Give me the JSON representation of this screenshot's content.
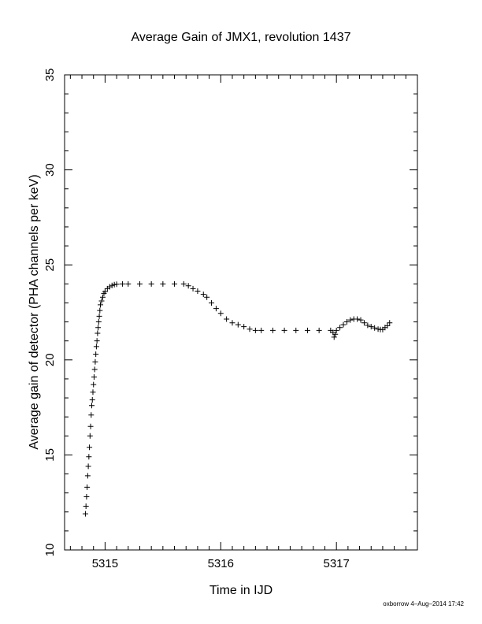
{
  "chart_data": {
    "type": "scatter",
    "title": "Average Gain of JMX1, revolution 1437",
    "xlabel": "Time in IJD",
    "ylabel": "Average gain of detector (PHA channels per keV)",
    "xlim": [
      5314.65,
      5317.7
    ],
    "ylim": [
      10,
      35
    ],
    "x_ticks": [
      5315,
      5316,
      5317
    ],
    "x_tick_labels": [
      "5315",
      "5316",
      "5317"
    ],
    "y_ticks": [
      10,
      15,
      20,
      25,
      30,
      35
    ],
    "y_tick_labels": [
      "10",
      "15",
      "20",
      "25",
      "30",
      "35"
    ],
    "grid": false,
    "marker": "plus",
    "color": "#000000",
    "series": [
      {
        "points": [
          [
            5314.83,
            11.9
          ],
          [
            5314.835,
            12.3
          ],
          [
            5314.84,
            12.8
          ],
          [
            5314.845,
            13.3
          ],
          [
            5314.85,
            13.9
          ],
          [
            5314.855,
            14.4
          ],
          [
            5314.86,
            14.9
          ],
          [
            5314.865,
            15.4
          ],
          [
            5314.87,
            16.0
          ],
          [
            5314.875,
            16.5
          ],
          [
            5314.88,
            17.1
          ],
          [
            5314.885,
            17.6
          ],
          [
            5314.89,
            17.9
          ],
          [
            5314.895,
            18.3
          ],
          [
            5314.9,
            18.7
          ],
          [
            5314.905,
            19.1
          ],
          [
            5314.91,
            19.5
          ],
          [
            5314.915,
            19.9
          ],
          [
            5314.92,
            20.3
          ],
          [
            5314.925,
            20.7
          ],
          [
            5314.93,
            21.0
          ],
          [
            5314.935,
            21.4
          ],
          [
            5314.94,
            21.7
          ],
          [
            5314.945,
            22.0
          ],
          [
            5314.95,
            22.3
          ],
          [
            5314.955,
            22.6
          ],
          [
            5314.96,
            22.9
          ],
          [
            5314.97,
            23.1
          ],
          [
            5314.98,
            23.3
          ],
          [
            5314.99,
            23.5
          ],
          [
            5315.0,
            23.6
          ],
          [
            5315.02,
            23.75
          ],
          [
            5315.04,
            23.85
          ],
          [
            5315.06,
            23.92
          ],
          [
            5315.08,
            23.96
          ],
          [
            5315.1,
            23.98
          ],
          [
            5315.15,
            24.0
          ],
          [
            5315.2,
            24.0
          ],
          [
            5315.3,
            24.0
          ],
          [
            5315.4,
            24.0
          ],
          [
            5315.5,
            24.0
          ],
          [
            5315.6,
            24.0
          ],
          [
            5315.68,
            24.0
          ],
          [
            5315.72,
            23.9
          ],
          [
            5315.76,
            23.75
          ],
          [
            5315.8,
            23.62
          ],
          [
            5315.85,
            23.45
          ],
          [
            5315.88,
            23.3
          ],
          [
            5315.92,
            23.0
          ],
          [
            5315.96,
            22.7
          ],
          [
            5316.0,
            22.45
          ],
          [
            5316.05,
            22.15
          ],
          [
            5316.1,
            21.95
          ],
          [
            5316.15,
            21.85
          ],
          [
            5316.2,
            21.75
          ],
          [
            5316.25,
            21.62
          ],
          [
            5316.3,
            21.55
          ],
          [
            5316.35,
            21.55
          ],
          [
            5316.45,
            21.55
          ],
          [
            5316.55,
            21.55
          ],
          [
            5316.65,
            21.55
          ],
          [
            5316.75,
            21.55
          ],
          [
            5316.85,
            21.55
          ],
          [
            5316.95,
            21.55
          ],
          [
            5316.97,
            21.45
          ],
          [
            5316.98,
            21.2
          ],
          [
            5316.99,
            21.35
          ],
          [
            5317.0,
            21.55
          ],
          [
            5317.03,
            21.7
          ],
          [
            5317.06,
            21.85
          ],
          [
            5317.09,
            22.0
          ],
          [
            5317.12,
            22.1
          ],
          [
            5317.15,
            22.15
          ],
          [
            5317.18,
            22.15
          ],
          [
            5317.21,
            22.1
          ],
          [
            5317.24,
            21.95
          ],
          [
            5317.27,
            21.82
          ],
          [
            5317.3,
            21.75
          ],
          [
            5317.33,
            21.68
          ],
          [
            5317.36,
            21.62
          ],
          [
            5317.38,
            21.6
          ],
          [
            5317.4,
            21.6
          ],
          [
            5317.42,
            21.7
          ],
          [
            5317.44,
            21.8
          ],
          [
            5317.46,
            21.95
          ]
        ]
      }
    ]
  },
  "footer": "oxborrow  4–Aug–2014 17:42"
}
